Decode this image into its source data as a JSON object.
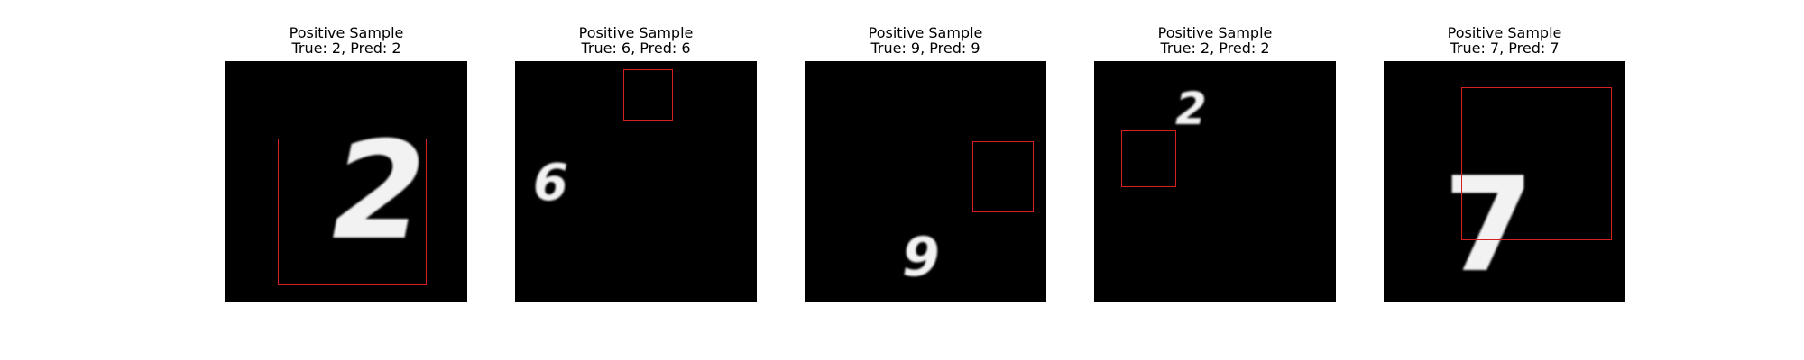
{
  "panels": [
    {
      "title": "Positive Sample\nTrue: 2, Pred: 2",
      "digit": "2"
    },
    {
      "title": "Positive Sample\nTrue: 6, Pred: 6",
      "digit": "6"
    },
    {
      "title": "Positive Sample\nTrue: 9, Pred: 9",
      "digit": "9"
    },
    {
      "title": "Positive Sample\nTrue: 2, Pred: 2",
      "digit": "2"
    },
    {
      "title": "Positive Sample\nTrue: 7, Pred: 7",
      "digit": "7"
    }
  ],
  "colors": {
    "box": "#d62020",
    "background": "#000000",
    "digit": "#f2f2f2"
  }
}
